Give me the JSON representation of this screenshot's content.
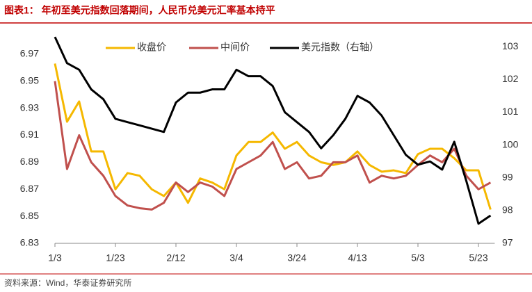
{
  "chart_data": {
    "type": "line",
    "title": "图表1：  年初至美元指数回落期间，人民币兑美元汇率基本持平",
    "source": "资料来源：Wind，华泰证券研究所",
    "x": [
      "1/3",
      "1/7",
      "1/11",
      "1/15",
      "1/19",
      "1/23",
      "1/27",
      "1/31",
      "2/4",
      "2/8",
      "2/12",
      "2/16",
      "2/20",
      "2/24",
      "2/28",
      "3/4",
      "3/8",
      "3/12",
      "3/16",
      "3/20",
      "3/24",
      "3/28",
      "4/1",
      "4/5",
      "4/9",
      "4/13",
      "4/17",
      "4/21",
      "4/25",
      "4/29",
      "5/3",
      "5/7",
      "5/11",
      "5/15",
      "5/19",
      "5/23",
      "5/27"
    ],
    "xticks": [
      "1/3",
      "1/23",
      "2/12",
      "3/4",
      "3/24",
      "4/13",
      "5/3",
      "5/23"
    ],
    "series": [
      {
        "name": "收盘价",
        "color": "#f5b800",
        "values": [
          6.963,
          6.92,
          6.935,
          6.898,
          6.898,
          6.87,
          6.882,
          6.88,
          6.87,
          6.865,
          6.875,
          6.86,
          6.878,
          6.875,
          6.87,
          6.895,
          6.905,
          6.905,
          6.912,
          6.9,
          6.905,
          6.895,
          6.89,
          6.888,
          6.89,
          6.898,
          6.888,
          6.883,
          6.884,
          6.882,
          6.896,
          6.9,
          6.9,
          6.893,
          6.884,
          6.884,
          6.855
        ]
      },
      {
        "name": "中间价",
        "color": "#c0504d",
        "values": [
          6.95,
          6.885,
          6.91,
          6.89,
          6.88,
          6.865,
          6.858,
          6.856,
          6.855,
          6.86,
          6.875,
          6.868,
          6.875,
          6.872,
          6.865,
          6.885,
          6.89,
          6.895,
          6.905,
          6.885,
          6.89,
          6.878,
          6.88,
          6.89,
          6.89,
          6.895,
          6.875,
          6.88,
          6.878,
          6.88,
          6.888,
          6.895,
          6.89,
          6.9,
          6.88,
          6.87,
          6.875
        ]
      },
      {
        "name": "美元指数（右轴）",
        "color": "#000000",
        "axis": "y2",
        "values": [
          103.3,
          102.5,
          102.3,
          101.7,
          101.4,
          100.8,
          100.7,
          100.6,
          100.5,
          100.4,
          101.3,
          101.6,
          101.6,
          101.7,
          101.7,
          102.3,
          102.1,
          102.1,
          101.8,
          101.0,
          100.7,
          100.4,
          99.9,
          100.3,
          100.8,
          101.5,
          101.3,
          100.9,
          100.3,
          99.7,
          99.4,
          99.5,
          99.25,
          100.1,
          98.9,
          97.6,
          97.85
        ]
      }
    ],
    "ylim": [
      6.83,
      6.99
    ],
    "yticks": [
      6.83,
      6.85,
      6.87,
      6.89,
      6.91,
      6.93,
      6.95,
      6.97
    ],
    "y2lim": [
      97,
      103.6
    ],
    "y2ticks": [
      97,
      98,
      99,
      100,
      101,
      102,
      103
    ],
    "grid": false
  }
}
